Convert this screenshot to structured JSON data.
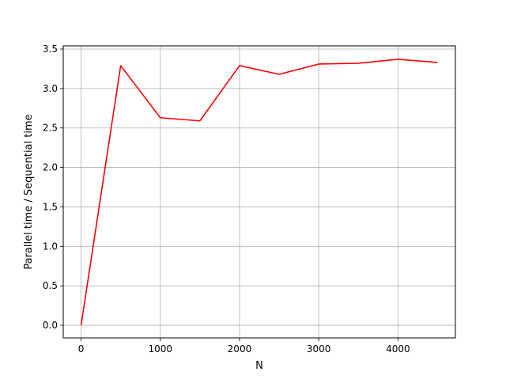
{
  "chart_data": {
    "type": "line",
    "title": "",
    "xlabel": "N",
    "ylabel": "Parallel time / Sequential time",
    "xlim": [
      -225,
      4725
    ],
    "ylim": [
      -0.16,
      3.54
    ],
    "grid": true,
    "x_ticks": [
      0,
      1000,
      2000,
      3000,
      4000
    ],
    "x_tick_labels": [
      "0",
      "1000",
      "2000",
      "3000",
      "4000"
    ],
    "y_ticks": [
      0.0,
      0.5,
      1.0,
      1.5,
      2.0,
      2.5,
      3.0,
      3.5
    ],
    "y_tick_labels": [
      "0.0",
      "0.5",
      "1.0",
      "1.5",
      "2.0",
      "2.5",
      "3.0",
      "3.5"
    ],
    "series": [
      {
        "color": "#ff0000",
        "x": [
          0,
          500,
          1000,
          1500,
          2000,
          2500,
          3000,
          3500,
          4000,
          4500
        ],
        "y": [
          0.0,
          3.29,
          2.63,
          2.59,
          3.29,
          3.18,
          3.31,
          3.32,
          3.37,
          3.33
        ]
      }
    ]
  }
}
